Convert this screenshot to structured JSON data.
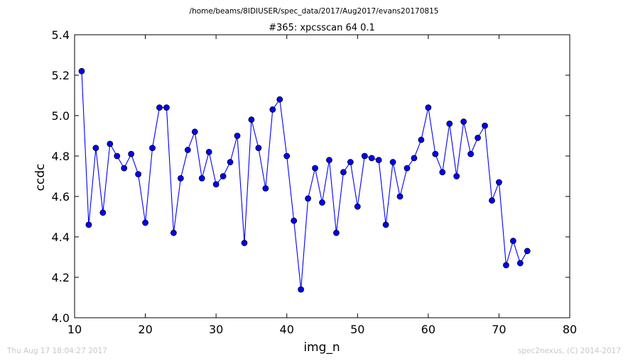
{
  "figure": {
    "suptitle": "/home/beams/8IDIUSER/spec_data/2017/Aug2017/evans20170815",
    "footer_left": "Thu Aug 17 18:04:27 2017",
    "footer_right": "spec2nexus, (C) 2014-2017"
  },
  "chart_data": {
    "type": "line",
    "title": "#365: xpcsscan 64 0.1",
    "xlabel": "img_n",
    "ylabel": "ccdc",
    "xlim": [
      10,
      80
    ],
    "ylim": [
      4.0,
      5.4
    ],
    "xticks": [
      "10",
      "20",
      "30",
      "40",
      "50",
      "60",
      "70",
      "80"
    ],
    "yticks": [
      "4.0",
      "4.2",
      "4.4",
      "4.6",
      "4.8",
      "5.0",
      "5.2",
      "5.4"
    ],
    "grid": false,
    "marker": "circle",
    "colors": {
      "series": "#0000ff"
    },
    "series": [
      {
        "x": [
          11,
          12,
          13,
          14,
          15,
          16,
          17,
          18,
          19,
          20,
          21,
          22,
          23,
          24,
          25,
          26,
          27,
          28,
          29,
          30,
          31,
          32,
          33,
          34,
          35,
          36,
          37,
          38,
          39,
          40,
          41,
          42,
          43,
          44,
          45,
          46,
          47,
          48,
          49,
          50,
          51,
          52,
          53,
          54,
          55,
          56,
          57,
          58,
          59,
          60,
          61,
          62,
          63,
          64,
          65,
          66,
          67,
          68,
          69,
          70,
          71,
          72,
          73,
          74
        ],
        "y": [
          5.22,
          4.46,
          4.84,
          4.52,
          4.86,
          4.8,
          4.74,
          4.81,
          4.71,
          4.47,
          4.84,
          5.04,
          5.04,
          4.42,
          4.69,
          4.83,
          4.92,
          4.69,
          4.82,
          4.66,
          4.7,
          4.77,
          4.9,
          4.37,
          4.98,
          4.84,
          4.64,
          5.03,
          5.08,
          4.8,
          4.48,
          4.14,
          4.59,
          4.74,
          4.57,
          4.78,
          4.42,
          4.72,
          4.77,
          4.55,
          4.8,
          4.79,
          4.78,
          4.46,
          4.77,
          4.6,
          4.74,
          4.79,
          4.88,
          5.04,
          4.81,
          4.72,
          4.96,
          4.7,
          4.97,
          4.81,
          4.89,
          4.95,
          4.58,
          4.67,
          4.26,
          4.38,
          4.27,
          4.33
        ]
      }
    ]
  }
}
